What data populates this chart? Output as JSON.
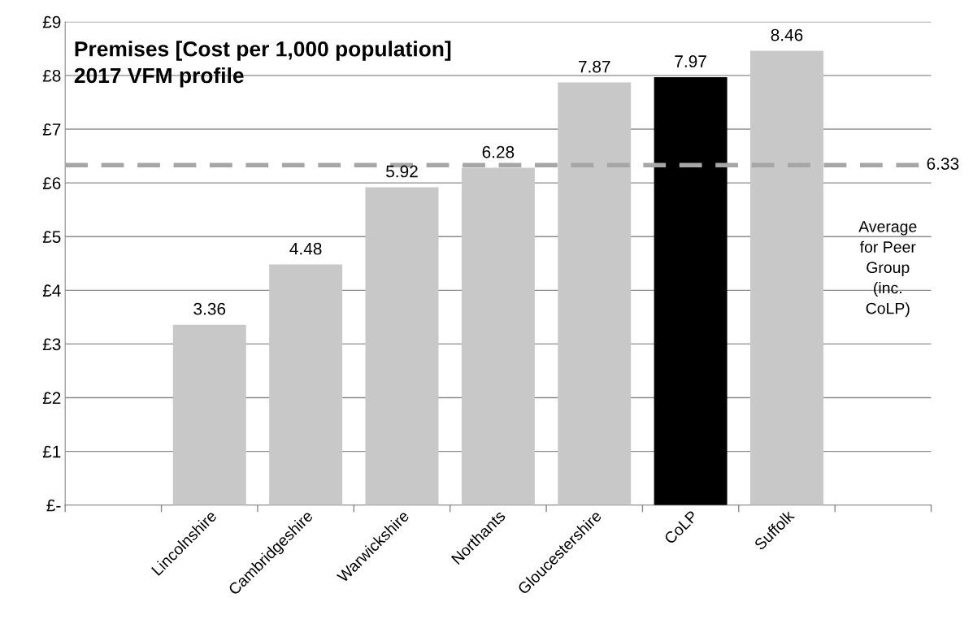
{
  "chart_data": {
    "type": "bar",
    "title": "Premises [Cost per 1,000 population]",
    "subtitle": "2017 VFM profile",
    "categories": [
      null,
      "Lincolnshire",
      "Cambridgeshire",
      "Warwickshire",
      "Northants",
      "Gloucestershire",
      "CoLP",
      "Suffolk",
      null
    ],
    "values": [
      null,
      3.36,
      4.48,
      5.92,
      6.28,
      7.87,
      7.97,
      8.46,
      null
    ],
    "colors": [
      "#c8c8c8",
      "#c8c8c8",
      "#c8c8c8",
      "#c8c8c8",
      "#c8c8c8",
      "#c8c8c8",
      "#000000",
      "#c8c8c8",
      "#c8c8c8"
    ],
    "ylim": [
      0,
      9
    ],
    "yticks": [
      {
        "value": 0,
        "label": "£-"
      },
      {
        "value": 1,
        "label": "£1"
      },
      {
        "value": 2,
        "label": "£2"
      },
      {
        "value": 3,
        "label": "£3"
      },
      {
        "value": 4,
        "label": "£4"
      },
      {
        "value": 5,
        "label": "£5"
      },
      {
        "value": 6,
        "label": "£6"
      },
      {
        "value": 7,
        "label": "£7"
      },
      {
        "value": 8,
        "label": "£8"
      },
      {
        "value": 9,
        "label": "£9"
      }
    ],
    "data_labels": true,
    "grid": "y",
    "ref_lines": [
      {
        "axis": "y",
        "value": 6.33,
        "label": "6.33",
        "color": "#a6a6a6",
        "line_style": "dashed"
      }
    ],
    "annotations": [
      "Average for Peer Group (inc. CoLP)"
    ]
  }
}
